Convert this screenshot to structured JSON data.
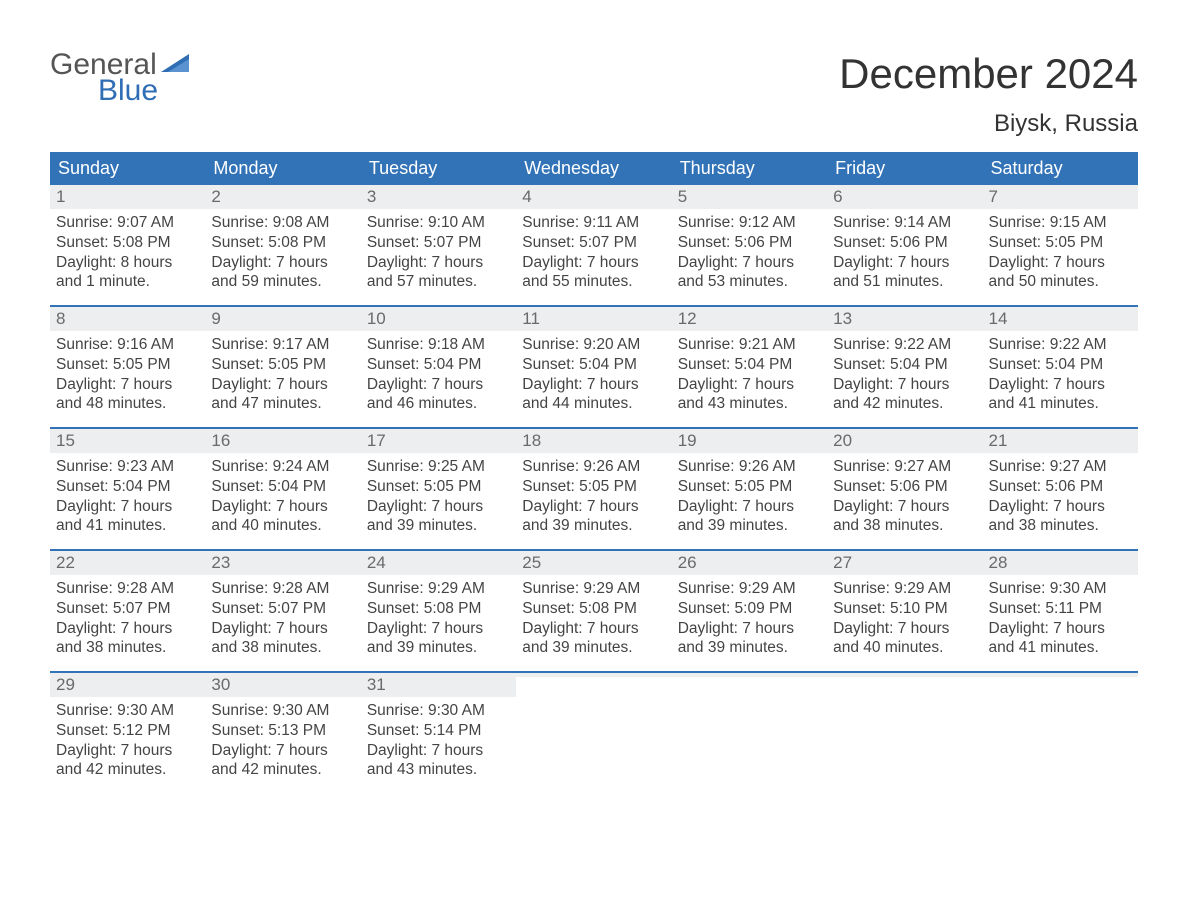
{
  "brand": {
    "word1": "General",
    "word2": "Blue",
    "color": "#2f6eb5"
  },
  "title": "December 2024",
  "location": "Biysk, Russia",
  "accent_color": "#3273b8",
  "header_bg": "#3273b8",
  "daynum_bg": "#eceeef",
  "day_headers": [
    "Sunday",
    "Monday",
    "Tuesday",
    "Wednesday",
    "Thursday",
    "Friday",
    "Saturday"
  ],
  "weeks": [
    [
      {
        "n": "1",
        "sr": "Sunrise: 9:07 AM",
        "ss": "Sunset: 5:08 PM",
        "d1": "Daylight: 8 hours",
        "d2": "and 1 minute."
      },
      {
        "n": "2",
        "sr": "Sunrise: 9:08 AM",
        "ss": "Sunset: 5:08 PM",
        "d1": "Daylight: 7 hours",
        "d2": "and 59 minutes."
      },
      {
        "n": "3",
        "sr": "Sunrise: 9:10 AM",
        "ss": "Sunset: 5:07 PM",
        "d1": "Daylight: 7 hours",
        "d2": "and 57 minutes."
      },
      {
        "n": "4",
        "sr": "Sunrise: 9:11 AM",
        "ss": "Sunset: 5:07 PM",
        "d1": "Daylight: 7 hours",
        "d2": "and 55 minutes."
      },
      {
        "n": "5",
        "sr": "Sunrise: 9:12 AM",
        "ss": "Sunset: 5:06 PM",
        "d1": "Daylight: 7 hours",
        "d2": "and 53 minutes."
      },
      {
        "n": "6",
        "sr": "Sunrise: 9:14 AM",
        "ss": "Sunset: 5:06 PM",
        "d1": "Daylight: 7 hours",
        "d2": "and 51 minutes."
      },
      {
        "n": "7",
        "sr": "Sunrise: 9:15 AM",
        "ss": "Sunset: 5:05 PM",
        "d1": "Daylight: 7 hours",
        "d2": "and 50 minutes."
      }
    ],
    [
      {
        "n": "8",
        "sr": "Sunrise: 9:16 AM",
        "ss": "Sunset: 5:05 PM",
        "d1": "Daylight: 7 hours",
        "d2": "and 48 minutes."
      },
      {
        "n": "9",
        "sr": "Sunrise: 9:17 AM",
        "ss": "Sunset: 5:05 PM",
        "d1": "Daylight: 7 hours",
        "d2": "and 47 minutes."
      },
      {
        "n": "10",
        "sr": "Sunrise: 9:18 AM",
        "ss": "Sunset: 5:04 PM",
        "d1": "Daylight: 7 hours",
        "d2": "and 46 minutes."
      },
      {
        "n": "11",
        "sr": "Sunrise: 9:20 AM",
        "ss": "Sunset: 5:04 PM",
        "d1": "Daylight: 7 hours",
        "d2": "and 44 minutes."
      },
      {
        "n": "12",
        "sr": "Sunrise: 9:21 AM",
        "ss": "Sunset: 5:04 PM",
        "d1": "Daylight: 7 hours",
        "d2": "and 43 minutes."
      },
      {
        "n": "13",
        "sr": "Sunrise: 9:22 AM",
        "ss": "Sunset: 5:04 PM",
        "d1": "Daylight: 7 hours",
        "d2": "and 42 minutes."
      },
      {
        "n": "14",
        "sr": "Sunrise: 9:22 AM",
        "ss": "Sunset: 5:04 PM",
        "d1": "Daylight: 7 hours",
        "d2": "and 41 minutes."
      }
    ],
    [
      {
        "n": "15",
        "sr": "Sunrise: 9:23 AM",
        "ss": "Sunset: 5:04 PM",
        "d1": "Daylight: 7 hours",
        "d2": "and 41 minutes."
      },
      {
        "n": "16",
        "sr": "Sunrise: 9:24 AM",
        "ss": "Sunset: 5:04 PM",
        "d1": "Daylight: 7 hours",
        "d2": "and 40 minutes."
      },
      {
        "n": "17",
        "sr": "Sunrise: 9:25 AM",
        "ss": "Sunset: 5:05 PM",
        "d1": "Daylight: 7 hours",
        "d2": "and 39 minutes."
      },
      {
        "n": "18",
        "sr": "Sunrise: 9:26 AM",
        "ss": "Sunset: 5:05 PM",
        "d1": "Daylight: 7 hours",
        "d2": "and 39 minutes."
      },
      {
        "n": "19",
        "sr": "Sunrise: 9:26 AM",
        "ss": "Sunset: 5:05 PM",
        "d1": "Daylight: 7 hours",
        "d2": "and 39 minutes."
      },
      {
        "n": "20",
        "sr": "Sunrise: 9:27 AM",
        "ss": "Sunset: 5:06 PM",
        "d1": "Daylight: 7 hours",
        "d2": "and 38 minutes."
      },
      {
        "n": "21",
        "sr": "Sunrise: 9:27 AM",
        "ss": "Sunset: 5:06 PM",
        "d1": "Daylight: 7 hours",
        "d2": "and 38 minutes."
      }
    ],
    [
      {
        "n": "22",
        "sr": "Sunrise: 9:28 AM",
        "ss": "Sunset: 5:07 PM",
        "d1": "Daylight: 7 hours",
        "d2": "and 38 minutes."
      },
      {
        "n": "23",
        "sr": "Sunrise: 9:28 AM",
        "ss": "Sunset: 5:07 PM",
        "d1": "Daylight: 7 hours",
        "d2": "and 38 minutes."
      },
      {
        "n": "24",
        "sr": "Sunrise: 9:29 AM",
        "ss": "Sunset: 5:08 PM",
        "d1": "Daylight: 7 hours",
        "d2": "and 39 minutes."
      },
      {
        "n": "25",
        "sr": "Sunrise: 9:29 AM",
        "ss": "Sunset: 5:08 PM",
        "d1": "Daylight: 7 hours",
        "d2": "and 39 minutes."
      },
      {
        "n": "26",
        "sr": "Sunrise: 9:29 AM",
        "ss": "Sunset: 5:09 PM",
        "d1": "Daylight: 7 hours",
        "d2": "and 39 minutes."
      },
      {
        "n": "27",
        "sr": "Sunrise: 9:29 AM",
        "ss": "Sunset: 5:10 PM",
        "d1": "Daylight: 7 hours",
        "d2": "and 40 minutes."
      },
      {
        "n": "28",
        "sr": "Sunrise: 9:30 AM",
        "ss": "Sunset: 5:11 PM",
        "d1": "Daylight: 7 hours",
        "d2": "and 41 minutes."
      }
    ],
    [
      {
        "n": "29",
        "sr": "Sunrise: 9:30 AM",
        "ss": "Sunset: 5:12 PM",
        "d1": "Daylight: 7 hours",
        "d2": "and 42 minutes."
      },
      {
        "n": "30",
        "sr": "Sunrise: 9:30 AM",
        "ss": "Sunset: 5:13 PM",
        "d1": "Daylight: 7 hours",
        "d2": "and 42 minutes."
      },
      {
        "n": "31",
        "sr": "Sunrise: 9:30 AM",
        "ss": "Sunset: 5:14 PM",
        "d1": "Daylight: 7 hours",
        "d2": "and 43 minutes."
      },
      {
        "empty": true
      },
      {
        "empty": true
      },
      {
        "empty": true
      },
      {
        "empty": true
      }
    ]
  ]
}
